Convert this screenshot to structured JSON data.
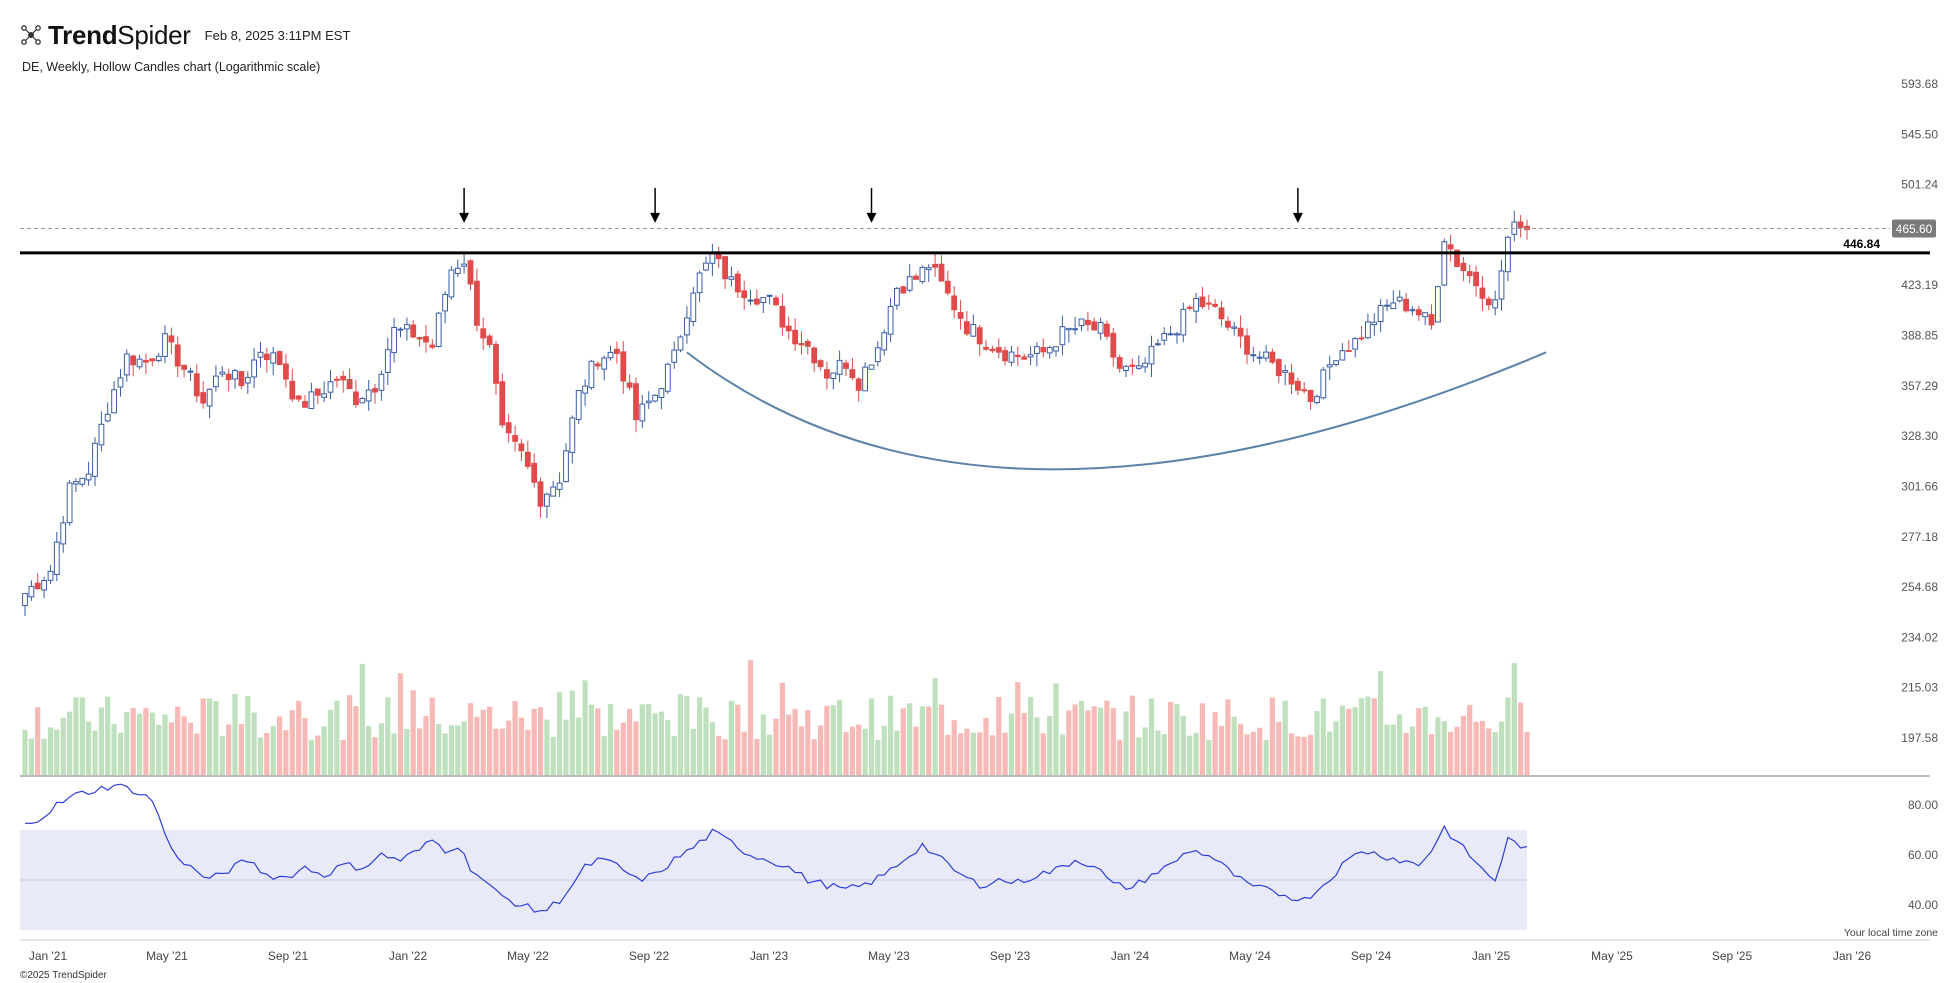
{
  "header": {
    "brand_bold": "Trend",
    "brand_light": "Spider",
    "timestamp": "Feb 8, 2025 3:11PM EST"
  },
  "subtitle": "DE, Weekly, Hollow Candles chart (Logarithmic scale)",
  "footer": {
    "copyright": "©2025 TrendSpider",
    "timezone_note": "Your local time zone"
  },
  "colors": {
    "up": "#3a5ea8",
    "down": "#e04a4a",
    "vol_up": "#bfe0bd",
    "vol_down": "#f6b9b6",
    "rsi_line": "#2f3fd6",
    "rsi_band": "#e8eaf8",
    "curve": "#5b82a8",
    "resistance": "#000000"
  },
  "chart_data": {
    "type": "candlestick",
    "scale": "log",
    "y_ticks": [
      593.68,
      545.5,
      501.24,
      423.19,
      388.85,
      357.29,
      328.3,
      301.66,
      277.18,
      254.68,
      234.02,
      215.03,
      197.58
    ],
    "y_range": [
      190,
      620
    ],
    "x_ticks": [
      "Jan '21",
      "May '21",
      "Sep '21",
      "Jan '22",
      "May '22",
      "Sep '22",
      "Jan '23",
      "May '23",
      "Sep '23",
      "Jan '24",
      "May '24",
      "Sep '24",
      "Jan '25",
      "May '25",
      "Sep '25",
      "Jan '26"
    ],
    "last_price": "465.60",
    "last_price_value": 465.6,
    "resistance_label": "446.84",
    "resistance_value": 446.84,
    "weekly_close_anchors": [
      [
        0,
        252
      ],
      [
        4,
        262
      ],
      [
        7,
        300
      ],
      [
        10,
        310
      ],
      [
        13,
        345
      ],
      [
        16,
        375
      ],
      [
        19,
        372
      ],
      [
        22,
        385
      ],
      [
        25,
        368
      ],
      [
        28,
        348
      ],
      [
        31,
        368
      ],
      [
        34,
        358
      ],
      [
        37,
        380
      ],
      [
        40,
        372
      ],
      [
        43,
        345
      ],
      [
        46,
        352
      ],
      [
        49,
        362
      ],
      [
        52,
        350
      ],
      [
        55,
        358
      ],
      [
        58,
        392
      ],
      [
        61,
        390
      ],
      [
        64,
        382
      ],
      [
        67,
        435
      ],
      [
        69,
        442
      ],
      [
        71,
        400
      ],
      [
        73,
        380
      ],
      [
        75,
        330
      ],
      [
        78,
        318
      ],
      [
        81,
        296
      ],
      [
        84,
        306
      ],
      [
        87,
        352
      ],
      [
        90,
        375
      ],
      [
        93,
        378
      ],
      [
        96,
        338
      ],
      [
        99,
        352
      ],
      [
        102,
        375
      ],
      [
        105,
        422
      ],
      [
        108,
        444
      ],
      [
        111,
        425
      ],
      [
        114,
        418
      ],
      [
        117,
        412
      ],
      [
        120,
        392
      ],
      [
        123,
        382
      ],
      [
        126,
        365
      ],
      [
        129,
        372
      ],
      [
        131,
        360
      ],
      [
        134,
        382
      ],
      [
        137,
        422
      ],
      [
        140,
        428
      ],
      [
        142,
        438
      ],
      [
        145,
        416
      ],
      [
        148,
        395
      ],
      [
        151,
        385
      ],
      [
        154,
        378
      ],
      [
        157,
        375
      ],
      [
        160,
        378
      ],
      [
        163,
        390
      ],
      [
        166,
        395
      ],
      [
        169,
        392
      ],
      [
        172,
        368
      ],
      [
        175,
        365
      ],
      [
        178,
        382
      ],
      [
        181,
        395
      ],
      [
        184,
        412
      ],
      [
        187,
        405
      ],
      [
        190,
        390
      ],
      [
        193,
        378
      ],
      [
        196,
        370
      ],
      [
        199,
        362
      ],
      [
        202,
        350
      ],
      [
        204,
        362
      ],
      [
        206,
        378
      ],
      [
        209,
        385
      ],
      [
        212,
        400
      ],
      [
        215,
        412
      ],
      [
        218,
        408
      ],
      [
        221,
        395
      ],
      [
        223,
        460
      ],
      [
        225,
        440
      ],
      [
        227,
        430
      ],
      [
        229,
        420
      ],
      [
        231,
        410
      ],
      [
        233,
        458
      ],
      [
        235,
        472
      ],
      [
        236,
        466
      ]
    ],
    "weeks_total": 237,
    "volume_pattern": "weekly volume bars, green for up weeks, red for down weeks",
    "rsi": {
      "ticks": [
        80.0,
        60.0,
        40.0
      ],
      "band": [
        30,
        70
      ],
      "midline": 50,
      "anchors": [
        [
          0,
          72
        ],
        [
          3,
          76
        ],
        [
          5,
          80
        ],
        [
          8,
          84
        ],
        [
          11,
          86
        ],
        [
          14,
          88
        ],
        [
          17,
          86
        ],
        [
          20,
          82
        ],
        [
          23,
          62
        ],
        [
          26,
          55
        ],
        [
          29,
          50
        ],
        [
          32,
          54
        ],
        [
          35,
          58
        ],
        [
          38,
          52
        ],
        [
          41,
          51
        ],
        [
          44,
          55
        ],
        [
          47,
          52
        ],
        [
          50,
          56
        ],
        [
          53,
          55
        ],
        [
          56,
          60
        ],
        [
          59,
          58
        ],
        [
          62,
          62
        ],
        [
          64,
          66
        ],
        [
          66,
          62
        ],
        [
          68,
          64
        ],
        [
          70,
          55
        ],
        [
          72,
          50
        ],
        [
          74,
          45
        ],
        [
          76,
          42
        ],
        [
          78,
          40
        ],
        [
          80,
          38
        ],
        [
          82,
          38
        ],
        [
          84,
          42
        ],
        [
          86,
          48
        ],
        [
          88,
          55
        ],
        [
          90,
          58
        ],
        [
          93,
          56
        ],
        [
          96,
          50
        ],
        [
          99,
          52
        ],
        [
          102,
          58
        ],
        [
          105,
          63
        ],
        [
          108,
          69
        ],
        [
          111,
          65
        ],
        [
          114,
          60
        ],
        [
          117,
          58
        ],
        [
          120,
          55
        ],
        [
          123,
          50
        ],
        [
          126,
          48
        ],
        [
          129,
          46
        ],
        [
          132,
          48
        ],
        [
          135,
          52
        ],
        [
          138,
          58
        ],
        [
          141,
          64
        ],
        [
          144,
          58
        ],
        [
          147,
          52
        ],
        [
          150,
          48
        ],
        [
          153,
          50
        ],
        [
          156,
          49
        ],
        [
          159,
          52
        ],
        [
          162,
          54
        ],
        [
          165,
          58
        ],
        [
          168,
          56
        ],
        [
          171,
          48
        ],
        [
          174,
          47
        ],
        [
          177,
          52
        ],
        [
          180,
          56
        ],
        [
          183,
          62
        ],
        [
          186,
          60
        ],
        [
          189,
          54
        ],
        [
          192,
          48
        ],
        [
          195,
          46
        ],
        [
          198,
          44
        ],
        [
          201,
          42
        ],
        [
          204,
          48
        ],
        [
          207,
          56
        ],
        [
          210,
          62
        ],
        [
          213,
          60
        ],
        [
          216,
          58
        ],
        [
          219,
          56
        ],
        [
          221,
          62
        ],
        [
          223,
          71
        ],
        [
          225,
          65
        ],
        [
          227,
          60
        ],
        [
          229,
          54
        ],
        [
          231,
          50
        ],
        [
          233,
          66
        ],
        [
          235,
          64
        ],
        [
          236,
          62
        ]
      ]
    },
    "annotations": {
      "arrows_at_weeks": [
        69,
        99,
        133,
        200
      ],
      "cup_curve": "rounded bottom arc from Feb '23 to Feb '25"
    }
  }
}
